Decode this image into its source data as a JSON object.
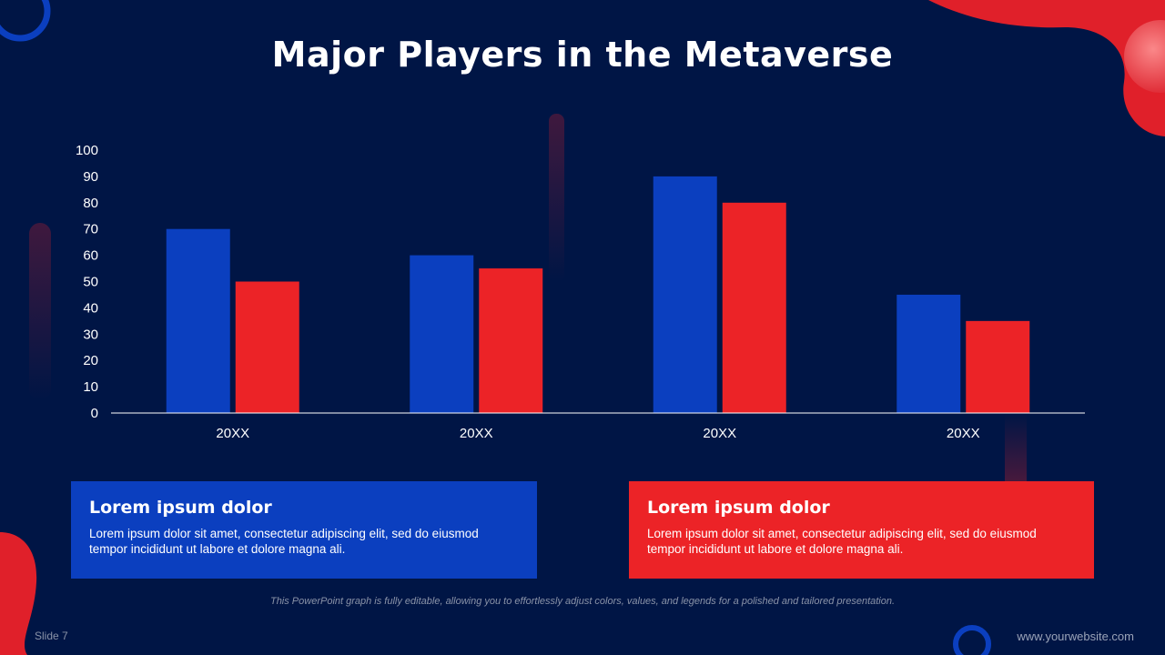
{
  "slide": {
    "title": "Major Players in the Metaverse",
    "footnote": "This PowerPoint graph is fully editable, allowing you to effortlessly adjust colors, values, and legends for a polished and tailored presentation.",
    "slide_number": "Slide 7",
    "website": "www.yourwebsite.com"
  },
  "cards": [
    {
      "title": "Lorem ipsum dolor",
      "body": "Lorem ipsum dolor sit amet, consectetur adipiscing elit, sed do eiusmod tempor incididunt ut labore et dolore magna ali.",
      "color": "#0b3fbf"
    },
    {
      "title": "Lorem ipsum dolor",
      "body": "Lorem ipsum dolor sit amet, consectetur adipiscing elit, sed do eiusmod tempor incididunt ut labore et dolore magna ali.",
      "color": "#ec2327"
    }
  ],
  "colors": {
    "background": "#001545",
    "blue": "#0b3fbf",
    "red": "#ec2327"
  },
  "chart_data": {
    "type": "bar",
    "categories": [
      "20XX",
      "20XX",
      "20XX",
      "20XX"
    ],
    "series": [
      {
        "values": [
          70,
          60,
          90,
          45
        ],
        "color": "#0b3fbf"
      },
      {
        "values": [
          50,
          55,
          80,
          35
        ],
        "color": "#ec2327"
      }
    ],
    "yticks": [
      0,
      10,
      20,
      30,
      40,
      50,
      60,
      70,
      80,
      90,
      100
    ],
    "ylim": [
      0,
      100
    ],
    "grid": false,
    "legend": "none"
  }
}
